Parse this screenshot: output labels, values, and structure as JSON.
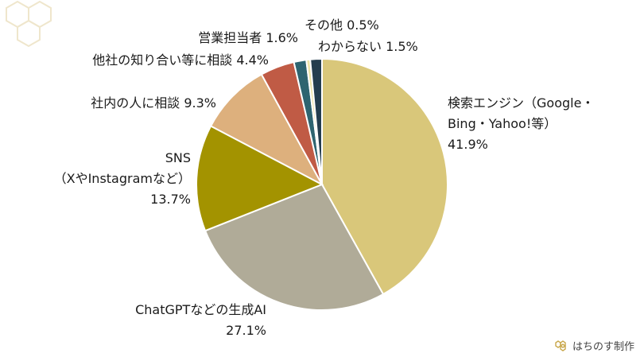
{
  "chart_data": {
    "type": "pie",
    "start": "top",
    "direction": "clockwise",
    "slices": [
      {
        "label_lines": [
          "検索エンジン（Google・",
          "Bing・Yahoo!等）"
        ],
        "pct_text": "41.9%",
        "value": 41.9,
        "color": "#D9C77A"
      },
      {
        "label_lines": [
          "ChatGPTなどの生成AI"
        ],
        "pct_text": "27.1%",
        "value": 27.1,
        "color": "#B0AB98"
      },
      {
        "label_lines": [
          "SNS",
          "（XやInstagramなど）"
        ],
        "pct_text": "13.7%",
        "value": 13.7,
        "color": "#A39300"
      },
      {
        "label_lines": [
          "社内の人に相談"
        ],
        "pct_text": "9.3%",
        "value": 9.3,
        "color": "#DDB07D"
      },
      {
        "label_lines": [
          "他社の知り合い等に相談"
        ],
        "pct_text": "4.4%",
        "value": 4.4,
        "color": "#C05B45"
      },
      {
        "label_lines": [
          "営業担当者"
        ],
        "pct_text": "1.6%",
        "value": 1.6,
        "color": "#2E6470"
      },
      {
        "label_lines": [
          "その他"
        ],
        "pct_text": "0.5%",
        "value": 0.5,
        "color": "#EEE3A6"
      },
      {
        "label_lines": [
          "わからない"
        ],
        "pct_text": "1.5%",
        "value": 1.5,
        "color": "#243D4E"
      }
    ]
  },
  "brand": {
    "text": "はちのす制作",
    "icon": "honeycomb-icon",
    "accent": "#C9A84C"
  }
}
